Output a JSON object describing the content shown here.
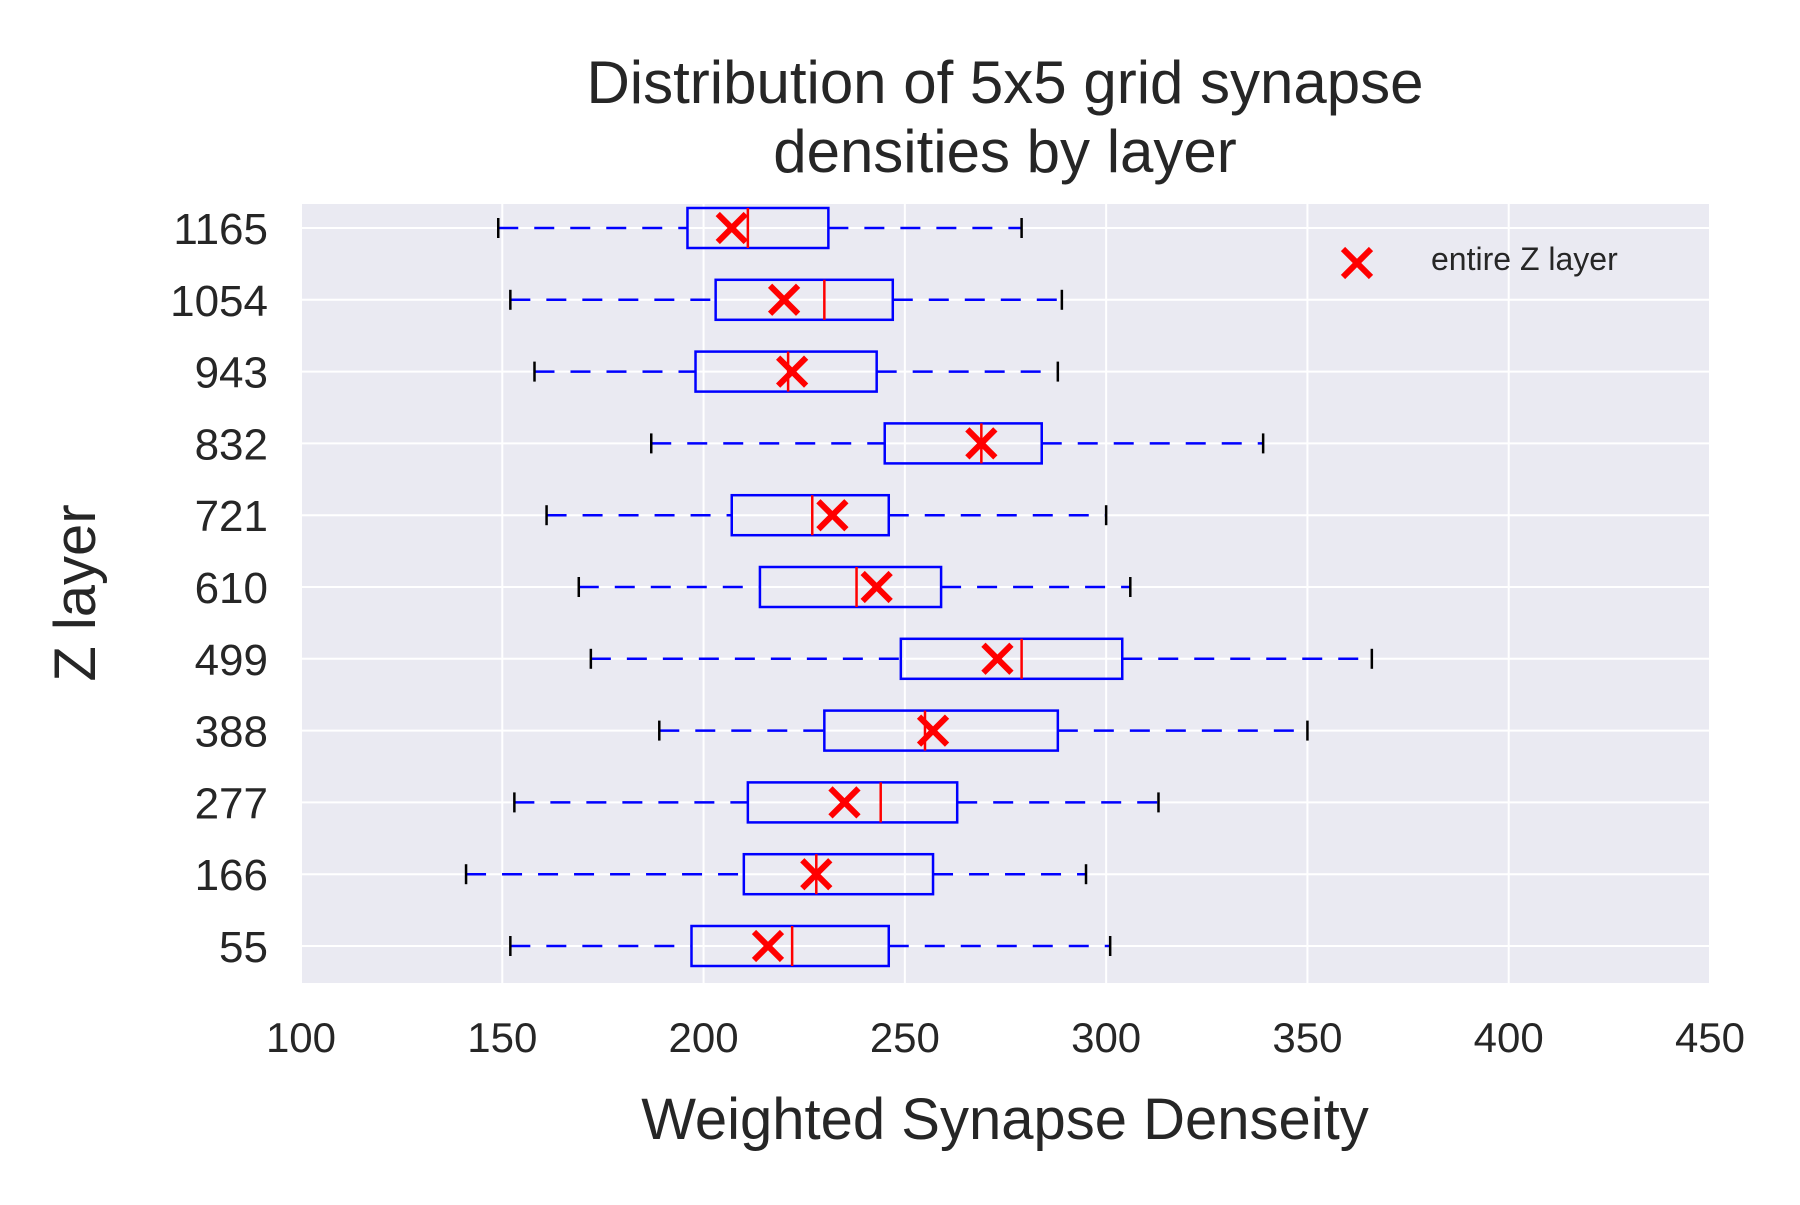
{
  "chart_data": {
    "type": "boxplot",
    "orientation": "horizontal",
    "title_line1": "Distribution of 5x5 grid synapse",
    "title_line2": "densities by layer",
    "xlabel": "Weighted Synapse Denseity",
    "ylabel": "Z layer",
    "xlim": [
      100,
      450
    ],
    "xticks": [
      100,
      150,
      200,
      250,
      300,
      350,
      400,
      450
    ],
    "grid": true,
    "legend_position": "top-right",
    "legend": {
      "label": "entire Z layer",
      "marker": "x"
    },
    "colors": {
      "background": "#eaeaf2",
      "grid": "#ffffff",
      "box": "#0000ff",
      "median": "#ff0000",
      "mean_marker": "#ff0000",
      "cap": "#000000"
    },
    "categories": [
      "55",
      "166",
      "277",
      "388",
      "499",
      "610",
      "721",
      "832",
      "943",
      "1054",
      "1165"
    ],
    "boxes": [
      {
        "layer": "55",
        "whisker_low": 152,
        "q1": 197,
        "median": 222,
        "q3": 246,
        "whisker_high": 301,
        "layer_mean": 216
      },
      {
        "layer": "166",
        "whisker_low": 141,
        "q1": 210,
        "median": 228,
        "q3": 257,
        "whisker_high": 295,
        "layer_mean": 228
      },
      {
        "layer": "277",
        "whisker_low": 153,
        "q1": 211,
        "median": 244,
        "q3": 263,
        "whisker_high": 313,
        "layer_mean": 235
      },
      {
        "layer": "388",
        "whisker_low": 189,
        "q1": 230,
        "median": 255,
        "q3": 288,
        "whisker_high": 350,
        "layer_mean": 257
      },
      {
        "layer": "499",
        "whisker_low": 172,
        "q1": 249,
        "median": 279,
        "q3": 304,
        "whisker_high": 366,
        "layer_mean": 273
      },
      {
        "layer": "610",
        "whisker_low": 169,
        "q1": 214,
        "median": 238,
        "q3": 259,
        "whisker_high": 306,
        "layer_mean": 243
      },
      {
        "layer": "721",
        "whisker_low": 161,
        "q1": 207,
        "median": 227,
        "q3": 246,
        "whisker_high": 300,
        "layer_mean": 232
      },
      {
        "layer": "832",
        "whisker_low": 187,
        "q1": 245,
        "median": 269,
        "q3": 284,
        "whisker_high": 339,
        "layer_mean": 269
      },
      {
        "layer": "943",
        "whisker_low": 158,
        "q1": 198,
        "median": 221,
        "q3": 243,
        "whisker_high": 288,
        "layer_mean": 222
      },
      {
        "layer": "1054",
        "whisker_low": 152,
        "q1": 203,
        "median": 230,
        "q3": 247,
        "whisker_high": 289,
        "layer_mean": 220
      },
      {
        "layer": "1165",
        "whisker_low": 149,
        "q1": 196,
        "median": 211,
        "q3": 231,
        "whisker_high": 279,
        "layer_mean": 207
      }
    ]
  }
}
